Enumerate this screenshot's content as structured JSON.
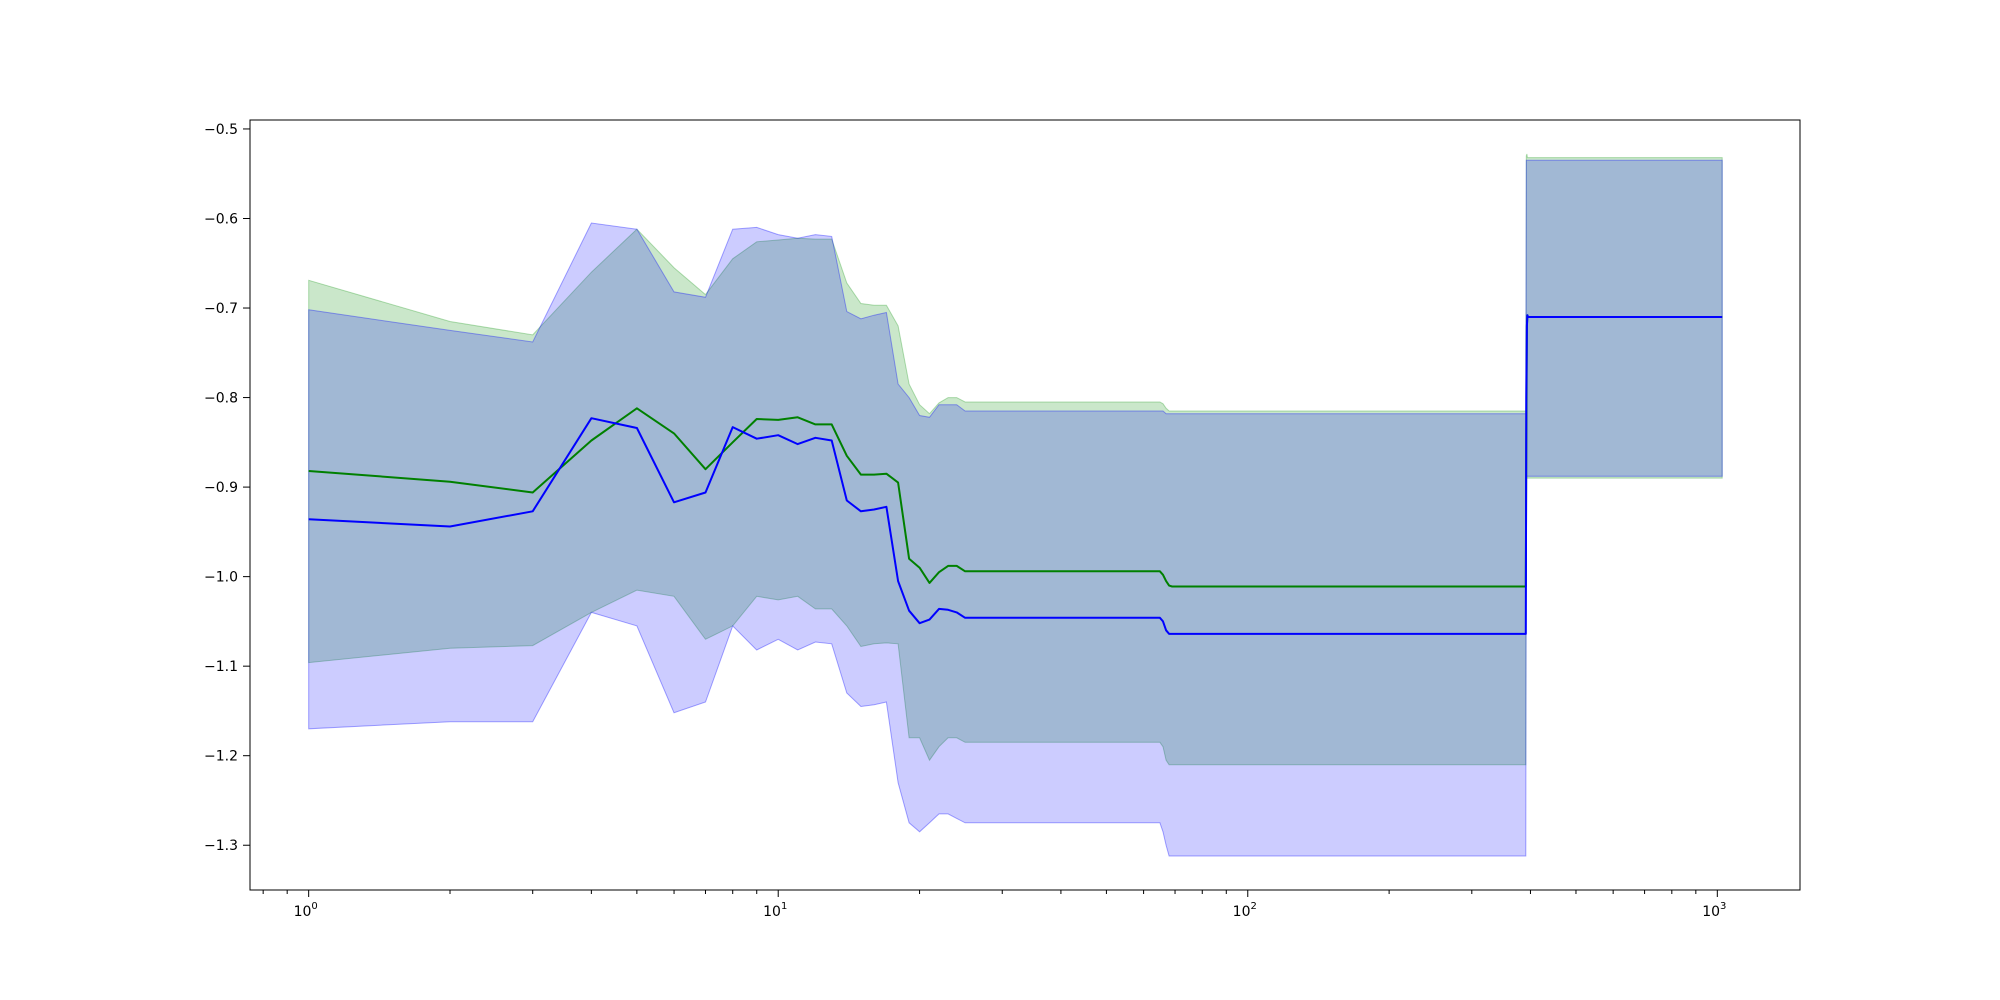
{
  "chart_data": {
    "type": "line",
    "title": "",
    "xlabel": "",
    "ylabel": "",
    "xscale": "log",
    "xlim": [
      0.75,
      1500
    ],
    "ylim": [
      -1.35,
      -0.49
    ],
    "grid": false,
    "legend": "none",
    "x_ticks": [
      {
        "value": 1,
        "base": "10",
        "exp": "0"
      },
      {
        "value": 10,
        "base": "10",
        "exp": "1"
      },
      {
        "value": 100,
        "base": "10",
        "exp": "2"
      },
      {
        "value": 1000,
        "base": "10",
        "exp": "3"
      }
    ],
    "y_ticks": [
      {
        "value": -0.5,
        "label": "−0.5"
      },
      {
        "value": -0.6,
        "label": "−0.6"
      },
      {
        "value": -0.7,
        "label": "−0.7"
      },
      {
        "value": -0.8,
        "label": "−0.8"
      },
      {
        "value": -0.9,
        "label": "−0.9"
      },
      {
        "value": -1.0,
        "label": "−1.0"
      },
      {
        "value": -1.1,
        "label": "−1.1"
      },
      {
        "value": -1.2,
        "label": "−1.2"
      },
      {
        "value": -1.3,
        "label": "−1.3"
      }
    ],
    "series": [
      {
        "color": "#008000",
        "band_color": "#2ca02c",
        "band_opacity": 0.25,
        "x": [
          1,
          2,
          3,
          4,
          5,
          6,
          7,
          8,
          9,
          10,
          11,
          12,
          13,
          14,
          15,
          16,
          17,
          18,
          19,
          20,
          21,
          22,
          23,
          24,
          25,
          65,
          66,
          67,
          68,
          69,
          70,
          390,
          391,
          392,
          393,
          394,
          395,
          400,
          1024
        ],
        "y": [
          -0.882,
          -0.894,
          -0.906,
          -0.848,
          -0.812,
          -0.84,
          -0.88,
          -0.85,
          -0.824,
          -0.825,
          -0.822,
          -0.83,
          -0.83,
          -0.865,
          -0.886,
          -0.886,
          -0.885,
          -0.895,
          -0.98,
          -0.99,
          -1.007,
          -0.995,
          -0.988,
          -0.988,
          -0.994,
          -0.994,
          -0.998,
          -1.005,
          -1.01,
          -1.011,
          -1.011,
          -1.011,
          -1.011,
          -0.85,
          -0.72,
          -0.708,
          -0.71,
          -0.71,
          -0.71
        ],
        "upper": [
          -0.669,
          -0.715,
          -0.73,
          -0.66,
          -0.612,
          -0.655,
          -0.685,
          -0.645,
          -0.626,
          -0.624,
          -0.622,
          -0.623,
          -0.623,
          -0.672,
          -0.695,
          -0.697,
          -0.697,
          -0.72,
          -0.785,
          -0.808,
          -0.818,
          -0.806,
          -0.8,
          -0.8,
          -0.805,
          -0.805,
          -0.807,
          -0.812,
          -0.815,
          -0.815,
          -0.815,
          -0.815,
          -0.815,
          -0.53,
          -0.528,
          -0.532,
          -0.532,
          -0.532,
          -0.532
        ],
        "lower": [
          -1.096,
          -1.08,
          -1.077,
          -1.04,
          -1.015,
          -1.022,
          -1.07,
          -1.055,
          -1.022,
          -1.026,
          -1.022,
          -1.036,
          -1.036,
          -1.055,
          -1.078,
          -1.075,
          -1.074,
          -1.075,
          -1.18,
          -1.18,
          -1.205,
          -1.19,
          -1.18,
          -1.18,
          -1.185,
          -1.185,
          -1.19,
          -1.205,
          -1.21,
          -1.21,
          -1.21,
          -1.21,
          -1.21,
          -0.89,
          -0.89,
          -0.89,
          -0.89,
          -0.89,
          -0.89
        ]
      },
      {
        "color": "#0000ff",
        "band_color": "#0000ff",
        "band_opacity": 0.2,
        "x": [
          1,
          2,
          3,
          4,
          5,
          6,
          7,
          8,
          9,
          10,
          11,
          12,
          13,
          14,
          15,
          16,
          17,
          18,
          19,
          20,
          21,
          22,
          23,
          24,
          25,
          65,
          66,
          67,
          68,
          69,
          70,
          390,
          391,
          392,
          393,
          394,
          395,
          400,
          1024
        ],
        "y": [
          -0.936,
          -0.944,
          -0.927,
          -0.823,
          -0.834,
          -0.917,
          -0.906,
          -0.833,
          -0.846,
          -0.842,
          -0.852,
          -0.845,
          -0.848,
          -0.915,
          -0.927,
          -0.925,
          -0.922,
          -1.005,
          -1.038,
          -1.052,
          -1.048,
          -1.036,
          -1.037,
          -1.04,
          -1.046,
          -1.046,
          -1.05,
          -1.06,
          -1.064,
          -1.064,
          -1.064,
          -1.064,
          -1.064,
          -0.8,
          -0.72,
          -0.708,
          -0.71,
          -0.71,
          -0.71
        ],
        "upper": [
          -0.702,
          -0.725,
          -0.738,
          -0.605,
          -0.612,
          -0.682,
          -0.688,
          -0.612,
          -0.61,
          -0.618,
          -0.622,
          -0.618,
          -0.62,
          -0.704,
          -0.712,
          -0.708,
          -0.705,
          -0.785,
          -0.8,
          -0.82,
          -0.822,
          -0.808,
          -0.808,
          -0.808,
          -0.815,
          -0.815,
          -0.815,
          -0.818,
          -0.818,
          -0.818,
          -0.818,
          -0.818,
          -0.818,
          -0.535,
          -0.535,
          -0.535,
          -0.535,
          -0.535,
          -0.535
        ],
        "lower": [
          -1.17,
          -1.162,
          -1.162,
          -1.04,
          -1.055,
          -1.152,
          -1.14,
          -1.055,
          -1.082,
          -1.07,
          -1.082,
          -1.073,
          -1.075,
          -1.13,
          -1.145,
          -1.143,
          -1.14,
          -1.23,
          -1.275,
          -1.285,
          -1.275,
          -1.265,
          -1.265,
          -1.27,
          -1.275,
          -1.275,
          -1.285,
          -1.3,
          -1.312,
          -1.312,
          -1.312,
          -1.312,
          -1.312,
          -0.888,
          -0.888,
          -0.888,
          -0.888,
          -0.888,
          -0.888
        ]
      }
    ]
  }
}
